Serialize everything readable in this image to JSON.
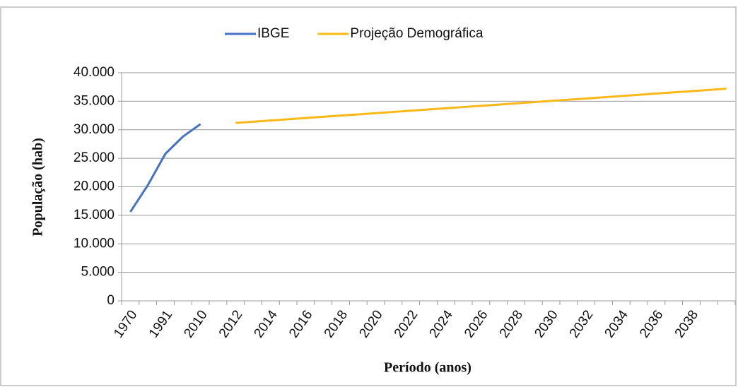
{
  "chart_data": {
    "type": "line",
    "y_label": "População (hab)",
    "x_label": "Período (anos)",
    "categories": [
      "1970",
      null,
      "1991",
      null,
      "2010",
      null,
      "2012",
      null,
      "2014",
      null,
      "2016",
      null,
      "2018",
      null,
      "2020",
      null,
      "2022",
      null,
      "2024",
      null,
      "2026",
      null,
      "2028",
      null,
      "2030",
      null,
      "2032",
      null,
      "2034",
      null,
      "2036",
      null,
      "2038",
      null,
      null
    ],
    "series": [
      {
        "name": "IBGE",
        "color": "#4472c4",
        "values": [
          15600,
          20300,
          25800,
          28800,
          31000,
          null,
          null,
          null,
          null,
          null,
          null,
          null,
          null,
          null,
          null,
          null,
          null,
          null,
          null,
          null,
          null,
          null,
          null,
          null,
          null,
          null,
          null,
          null,
          null,
          null,
          null,
          null,
          null,
          null,
          null
        ]
      },
      {
        "name": "Projeção Demográfica",
        "color": "#fbb917",
        "values": [
          null,
          null,
          null,
          null,
          null,
          null,
          31200,
          31414,
          31629,
          31843,
          32057,
          32271,
          32486,
          32700,
          32914,
          33129,
          33343,
          33557,
          33771,
          33986,
          34200,
          34414,
          34629,
          34843,
          35057,
          35271,
          35486,
          35700,
          35914,
          36129,
          36343,
          36557,
          36771,
          36986,
          37200
        ]
      }
    ],
    "ylim": [
      0,
      40000
    ],
    "yticks": [
      0,
      {
        "value": 5000,
        "label": "5.000"
      },
      {
        "value": 10000,
        "label": "10.000"
      },
      {
        "value": 15000,
        "label": "15.000"
      },
      {
        "value": 20000,
        "label": "20.000"
      },
      {
        "value": 25000,
        "label": "25.000"
      },
      {
        "value": 30000,
        "label": "30.000"
      },
      {
        "value": 35000,
        "label": "35.000"
      },
      {
        "value": 40000,
        "label": "40.000"
      }
    ],
    "grid": true,
    "legend": "top"
  }
}
